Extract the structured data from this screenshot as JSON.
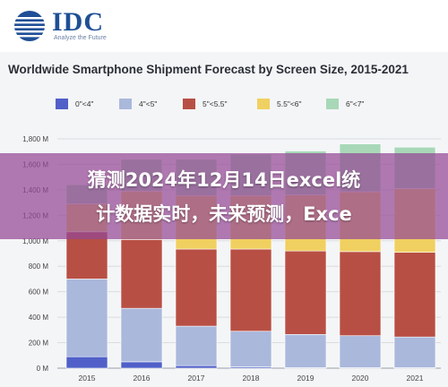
{
  "logo": {
    "brand": "IDC",
    "tagline": "Analyze the Future"
  },
  "overlay": {
    "line1": "猜测2024年12月14日excel统",
    "line2": "计数据实时，未来预测，Exce"
  },
  "colors": {
    "logo_blue": "#1f4f96",
    "overlay": "#944894",
    "series": [
      "#5060c8",
      "#aab8dc",
      "#b84f44",
      "#f0d060",
      "#a8d8b8"
    ]
  },
  "chart_data": {
    "type": "bar",
    "stacked": true,
    "title": "Worldwide Smartphone Shipment Forecast by Screen Size, 2015-2021",
    "categories": [
      "2015",
      "2016",
      "2017",
      "2018",
      "2019",
      "2020",
      "2021"
    ],
    "series": [
      {
        "name": "0\"<4\"",
        "color": "#5060c8",
        "values": [
          90,
          50,
          20,
          10,
          5,
          5,
          5
        ]
      },
      {
        "name": "4\"<5\"",
        "color": "#aab8dc",
        "values": [
          610,
          420,
          310,
          280,
          260,
          250,
          240
        ]
      },
      {
        "name": "5\"<5.5\"",
        "color": "#b84f44",
        "values": [
          370,
          540,
          605,
          645,
          655,
          660,
          665
        ]
      },
      {
        "name": "5.5\"<6\"",
        "color": "#f0d060",
        "values": [
          220,
          380,
          420,
          420,
          440,
          470,
          500
        ]
      },
      {
        "name": "6\"<7\"",
        "color": "#a8d8b8",
        "values": [
          150,
          250,
          285,
          325,
          345,
          375,
          325
        ]
      }
    ],
    "y_ticks": [
      "0 M",
      "200 M",
      "400 M",
      "600 M",
      "800 M",
      "1,000 M",
      "1,200 M",
      "1,400 M",
      "1,600 M",
      "1,800 M"
    ],
    "ylim": [
      0,
      1800
    ],
    "grid": true,
    "legend_position": "top"
  }
}
